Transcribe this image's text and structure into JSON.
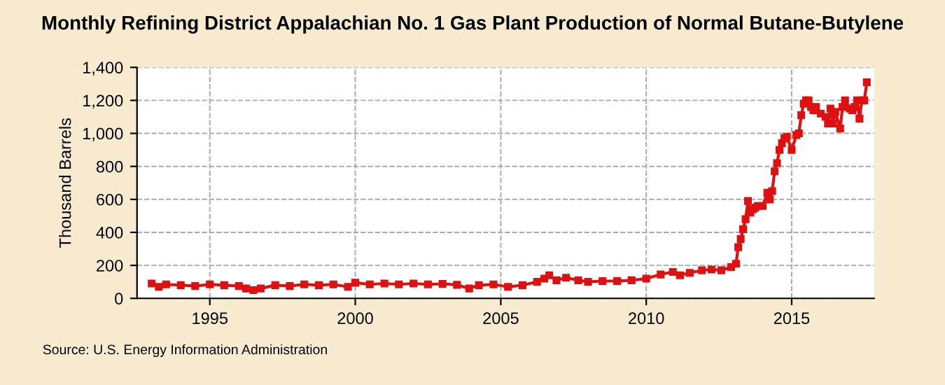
{
  "chart_data": {
    "type": "line",
    "title": "Monthly Refining District Appalachian No. 1 Gas Plant Production of Normal Butane-Butylene",
    "ylabel": "Thousand Barrels",
    "annotations": [
      "Source: U.S. Energy Information Administration"
    ],
    "x": [
      "1993-01",
      "1993-04",
      "1993-07",
      "1994-01",
      "1994-07",
      "1995-01",
      "1995-07",
      "1996-01",
      "1996-04",
      "1996-07",
      "1996-10",
      "1997-04",
      "1997-10",
      "1998-04",
      "1998-10",
      "1999-04",
      "1999-10",
      "2000-01",
      "2000-07",
      "2001-01",
      "2001-07",
      "2002-01",
      "2002-07",
      "2003-01",
      "2003-07",
      "2003-12",
      "2004-04",
      "2004-10",
      "2005-04",
      "2005-10",
      "2006-04",
      "2006-07",
      "2006-09",
      "2006-12",
      "2007-04",
      "2007-09",
      "2008-01",
      "2008-07",
      "2009-01",
      "2009-07",
      "2010-01",
      "2010-07",
      "2010-12",
      "2011-03",
      "2011-07",
      "2011-12",
      "2012-04",
      "2012-08",
      "2012-12",
      "2013-02",
      "2013-03",
      "2013-04",
      "2013-05",
      "2013-06",
      "2013-07",
      "2013-08",
      "2013-09",
      "2013-10",
      "2013-11",
      "2014-01",
      "2014-03",
      "2014-04",
      "2014-05",
      "2014-06",
      "2014-07",
      "2014-08",
      "2014-09",
      "2014-10",
      "2014-11",
      "2015-01",
      "2015-03",
      "2015-04",
      "2015-05",
      "2015-06",
      "2015-07",
      "2015-08",
      "2015-09",
      "2015-10",
      "2015-11",
      "2016-01",
      "2016-03",
      "2016-04",
      "2016-05",
      "2016-06",
      "2016-07",
      "2016-09",
      "2016-10",
      "2016-11",
      "2017-01",
      "2017-02",
      "2017-03",
      "2017-04",
      "2017-05",
      "2017-06",
      "2017-07",
      "2017-08"
    ],
    "series": [
      {
        "color": "#dd1111",
        "values": [
          90,
          70,
          85,
          80,
          75,
          85,
          80,
          75,
          60,
          50,
          60,
          80,
          75,
          85,
          80,
          85,
          70,
          95,
          85,
          90,
          85,
          90,
          85,
          88,
          82,
          60,
          80,
          85,
          70,
          80,
          100,
          120,
          140,
          110,
          125,
          110,
          100,
          105,
          105,
          110,
          120,
          145,
          160,
          140,
          155,
          170,
          175,
          170,
          190,
          210,
          310,
          360,
          420,
          480,
          590,
          520,
          540,
          550,
          560,
          560,
          640,
          600,
          650,
          770,
          820,
          900,
          940,
          970,
          980,
          900,
          990,
          1000,
          1110,
          1180,
          1200,
          1200,
          1160,
          1140,
          1160,
          1120,
          1100,
          1060,
          1150,
          1060,
          1130,
          1030,
          1160,
          1200,
          1150,
          1140,
          1160,
          1200,
          1090,
          1200,
          1200,
          1310
        ]
      }
    ],
    "xlim": [
      "1992-07",
      "2017-11"
    ],
    "xticks": [
      {
        "value": "1995-01",
        "label": "1995"
      },
      {
        "value": "2000-01",
        "label": "2000"
      },
      {
        "value": "2005-01",
        "label": "2005"
      },
      {
        "value": "2010-01",
        "label": "2010"
      },
      {
        "value": "2015-01",
        "label": "2015"
      }
    ],
    "ylim": [
      0,
      1400
    ],
    "yticks": [
      {
        "value": 0,
        "label": "0"
      },
      {
        "value": 200,
        "label": "200"
      },
      {
        "value": 400,
        "label": "400"
      },
      {
        "value": 600,
        "label": "600"
      },
      {
        "value": 800,
        "label": "800"
      },
      {
        "value": 1000,
        "label": "1,000"
      },
      {
        "value": 1200,
        "label": "1,200"
      },
      {
        "value": 1400,
        "label": "1,400"
      }
    ],
    "grid": true,
    "marker": "square",
    "line_style": "solid"
  }
}
